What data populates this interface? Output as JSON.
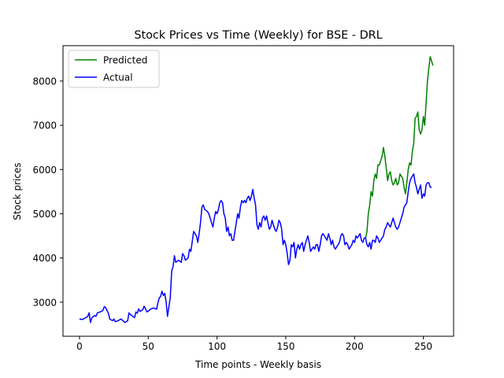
{
  "chart_data": {
    "type": "line",
    "title": "Stock Prices vs Time (Weekly) for BSE - DRL",
    "xlabel": "Time points - Weekly basis",
    "ylabel": "Stock prices",
    "xlim": [
      -12,
      272
    ],
    "ylim": [
      2230,
      8800
    ],
    "xticks": [
      0,
      50,
      100,
      150,
      200,
      250
    ],
    "yticks": [
      3000,
      4000,
      5000,
      6000,
      7000,
      8000
    ],
    "grid": false,
    "legend": "top-left",
    "series": [
      {
        "name": "Predicted",
        "color": "#008000",
        "points": [
          [
            208,
            4450
          ],
          [
            209,
            4600
          ],
          [
            210,
            5000
          ],
          [
            211,
            5200
          ],
          [
            212,
            5500
          ],
          [
            213,
            5400
          ],
          [
            214,
            5750
          ],
          [
            215,
            5900
          ],
          [
            216,
            5800
          ],
          [
            217,
            6100
          ],
          [
            218,
            6100
          ],
          [
            219,
            6200
          ],
          [
            220,
            6300
          ],
          [
            221,
            6500
          ],
          [
            222,
            6300
          ],
          [
            223,
            6050
          ],
          [
            224,
            5750
          ],
          [
            225,
            5900
          ],
          [
            226,
            5950
          ],
          [
            227,
            5750
          ],
          [
            228,
            5650
          ],
          [
            229,
            5700
          ],
          [
            230,
            5800
          ],
          [
            231,
            5650
          ],
          [
            232,
            5700
          ],
          [
            233,
            5900
          ],
          [
            234,
            5850
          ],
          [
            235,
            5800
          ],
          [
            236,
            5600
          ],
          [
            237,
            5450
          ],
          [
            238,
            5700
          ],
          [
            239,
            6000
          ],
          [
            240,
            6150
          ],
          [
            241,
            6100
          ],
          [
            242,
            6400
          ],
          [
            243,
            6600
          ],
          [
            244,
            7150
          ],
          [
            245,
            7200
          ],
          [
            246,
            7300
          ],
          [
            247,
            6900
          ],
          [
            248,
            6800
          ],
          [
            249,
            6900
          ],
          [
            250,
            7200
          ],
          [
            251,
            7000
          ],
          [
            252,
            7500
          ],
          [
            253,
            8000
          ],
          [
            254,
            8300
          ],
          [
            255,
            8550
          ],
          [
            256,
            8450
          ],
          [
            257,
            8350
          ]
        ]
      },
      {
        "name": "Actual",
        "color": "#0000ff",
        "points": [
          [
            0,
            2620
          ],
          [
            2,
            2610
          ],
          [
            4,
            2640
          ],
          [
            6,
            2680
          ],
          [
            7,
            2760
          ],
          [
            8,
            2540
          ],
          [
            9,
            2650
          ],
          [
            11,
            2700
          ],
          [
            12,
            2680
          ],
          [
            13,
            2760
          ],
          [
            15,
            2780
          ],
          [
            17,
            2810
          ],
          [
            18,
            2900
          ],
          [
            19,
            2880
          ],
          [
            21,
            2750
          ],
          [
            22,
            2620
          ],
          [
            24,
            2580
          ],
          [
            25,
            2620
          ],
          [
            26,
            2560
          ],
          [
            28,
            2580
          ],
          [
            30,
            2620
          ],
          [
            31,
            2600
          ],
          [
            33,
            2540
          ],
          [
            35,
            2580
          ],
          [
            36,
            2760
          ],
          [
            37,
            2720
          ],
          [
            38,
            2700
          ],
          [
            40,
            2650
          ],
          [
            41,
            2780
          ],
          [
            42,
            2750
          ],
          [
            43,
            2850
          ],
          [
            44,
            2790
          ],
          [
            46,
            2830
          ],
          [
            47,
            2910
          ],
          [
            48,
            2850
          ],
          [
            49,
            2780
          ],
          [
            50,
            2800
          ],
          [
            52,
            2850
          ],
          [
            54,
            2870
          ],
          [
            56,
            2840
          ],
          [
            57,
            2980
          ],
          [
            58,
            3100
          ],
          [
            59,
            3130
          ],
          [
            60,
            3250
          ],
          [
            61,
            3150
          ],
          [
            62,
            3200
          ],
          [
            63,
            3000
          ],
          [
            64,
            2680
          ],
          [
            65,
            2900
          ],
          [
            66,
            3100
          ],
          [
            67,
            3700
          ],
          [
            68,
            3800
          ],
          [
            69,
            4050
          ],
          [
            70,
            3900
          ],
          [
            72,
            3950
          ],
          [
            74,
            3900
          ],
          [
            75,
            4100
          ],
          [
            76,
            4050
          ],
          [
            77,
            3950
          ],
          [
            79,
            4000
          ],
          [
            80,
            4200
          ],
          [
            81,
            4150
          ],
          [
            83,
            4600
          ],
          [
            85,
            4500
          ],
          [
            86,
            4350
          ],
          [
            87,
            4550
          ],
          [
            88,
            4800
          ],
          [
            89,
            5150
          ],
          [
            90,
            5200
          ],
          [
            91,
            5100
          ],
          [
            93,
            5050
          ],
          [
            94,
            5000
          ],
          [
            96,
            4800
          ],
          [
            97,
            4700
          ],
          [
            98,
            4900
          ],
          [
            99,
            5050
          ],
          [
            100,
            5000
          ],
          [
            101,
            5100
          ],
          [
            102,
            5250
          ],
          [
            103,
            5300
          ],
          [
            104,
            5250
          ],
          [
            105,
            5000
          ],
          [
            106,
            4900
          ],
          [
            107,
            4600
          ],
          [
            108,
            4700
          ],
          [
            109,
            4500
          ],
          [
            110,
            4550
          ],
          [
            111,
            4400
          ],
          [
            112,
            4400
          ],
          [
            113,
            4600
          ],
          [
            114,
            4800
          ],
          [
            115,
            5000
          ],
          [
            116,
            4900
          ],
          [
            117,
            5150
          ],
          [
            118,
            5300
          ],
          [
            119,
            5250
          ],
          [
            120,
            5300
          ],
          [
            121,
            5250
          ],
          [
            122,
            5350
          ],
          [
            123,
            5400
          ],
          [
            124,
            5300
          ],
          [
            125,
            5400
          ],
          [
            126,
            5550
          ],
          [
            127,
            5350
          ],
          [
            128,
            5200
          ],
          [
            129,
            4750
          ],
          [
            130,
            4650
          ],
          [
            131,
            4800
          ],
          [
            132,
            4700
          ],
          [
            133,
            4900
          ],
          [
            134,
            4950
          ],
          [
            135,
            4850
          ],
          [
            136,
            4950
          ],
          [
            137,
            4800
          ],
          [
            138,
            4650
          ],
          [
            139,
            4700
          ],
          [
            140,
            4850
          ],
          [
            141,
            4750
          ],
          [
            142,
            4650
          ],
          [
            143,
            4600
          ],
          [
            144,
            4700
          ],
          [
            145,
            4850
          ],
          [
            146,
            4800
          ],
          [
            147,
            4650
          ],
          [
            148,
            4300
          ],
          [
            149,
            4400
          ],
          [
            150,
            4300
          ],
          [
            151,
            4100
          ],
          [
            152,
            3850
          ],
          [
            153,
            3950
          ],
          [
            154,
            4300
          ],
          [
            155,
            4250
          ],
          [
            156,
            4350
          ],
          [
            157,
            4000
          ],
          [
            158,
            4200
          ],
          [
            159,
            4300
          ],
          [
            160,
            4200
          ],
          [
            161,
            4300
          ],
          [
            162,
            4350
          ],
          [
            163,
            4150
          ],
          [
            164,
            4300
          ],
          [
            165,
            4400
          ],
          [
            166,
            4500
          ],
          [
            167,
            4350
          ],
          [
            168,
            4150
          ],
          [
            169,
            4200
          ],
          [
            170,
            4250
          ],
          [
            171,
            4200
          ],
          [
            172,
            4300
          ],
          [
            173,
            4300
          ],
          [
            174,
            4150
          ],
          [
            175,
            4300
          ],
          [
            176,
            4500
          ],
          [
            177,
            4550
          ],
          [
            178,
            4500
          ],
          [
            179,
            4450
          ],
          [
            180,
            4400
          ],
          [
            181,
            4550
          ],
          [
            182,
            4450
          ],
          [
            183,
            4300
          ],
          [
            184,
            4400
          ],
          [
            185,
            4250
          ],
          [
            186,
            4200
          ],
          [
            187,
            4250
          ],
          [
            188,
            4300
          ],
          [
            189,
            4350
          ],
          [
            190,
            4500
          ],
          [
            191,
            4550
          ],
          [
            192,
            4500
          ],
          [
            193,
            4300
          ],
          [
            194,
            4350
          ],
          [
            195,
            4300
          ],
          [
            196,
            4200
          ],
          [
            197,
            4250
          ],
          [
            198,
            4300
          ],
          [
            199,
            4400
          ],
          [
            200,
            4350
          ],
          [
            201,
            4500
          ],
          [
            202,
            4450
          ],
          [
            203,
            4500
          ],
          [
            204,
            4550
          ],
          [
            205,
            4400
          ],
          [
            206,
            4350
          ],
          [
            207,
            4450
          ],
          [
            208,
            4450
          ],
          [
            209,
            4300
          ],
          [
            210,
            4250
          ],
          [
            211,
            4350
          ],
          [
            212,
            4200
          ],
          [
            213,
            4400
          ],
          [
            214,
            4400
          ],
          [
            215,
            4350
          ],
          [
            216,
            4500
          ],
          [
            217,
            4450
          ],
          [
            218,
            4350
          ],
          [
            219,
            4400
          ],
          [
            220,
            4450
          ],
          [
            221,
            4500
          ],
          [
            222,
            4650
          ],
          [
            223,
            4700
          ],
          [
            224,
            4800
          ],
          [
            225,
            4750
          ],
          [
            226,
            4700
          ],
          [
            227,
            4800
          ],
          [
            228,
            4900
          ],
          [
            229,
            4800
          ],
          [
            230,
            4700
          ],
          [
            231,
            4650
          ],
          [
            232,
            4700
          ],
          [
            233,
            4800
          ],
          [
            234,
            4900
          ],
          [
            235,
            5000
          ],
          [
            236,
            5150
          ],
          [
            237,
            5200
          ],
          [
            238,
            5250
          ],
          [
            239,
            5500
          ],
          [
            240,
            5700
          ],
          [
            241,
            5800
          ],
          [
            242,
            5850
          ],
          [
            243,
            5900
          ],
          [
            244,
            5700
          ],
          [
            245,
            5600
          ],
          [
            246,
            5450
          ],
          [
            247,
            5550
          ],
          [
            248,
            5650
          ],
          [
            249,
            5350
          ],
          [
            250,
            5450
          ],
          [
            251,
            5400
          ],
          [
            252,
            5650
          ],
          [
            253,
            5700
          ],
          [
            254,
            5700
          ],
          [
            255,
            5600
          ],
          [
            256,
            5600
          ]
        ]
      }
    ]
  }
}
